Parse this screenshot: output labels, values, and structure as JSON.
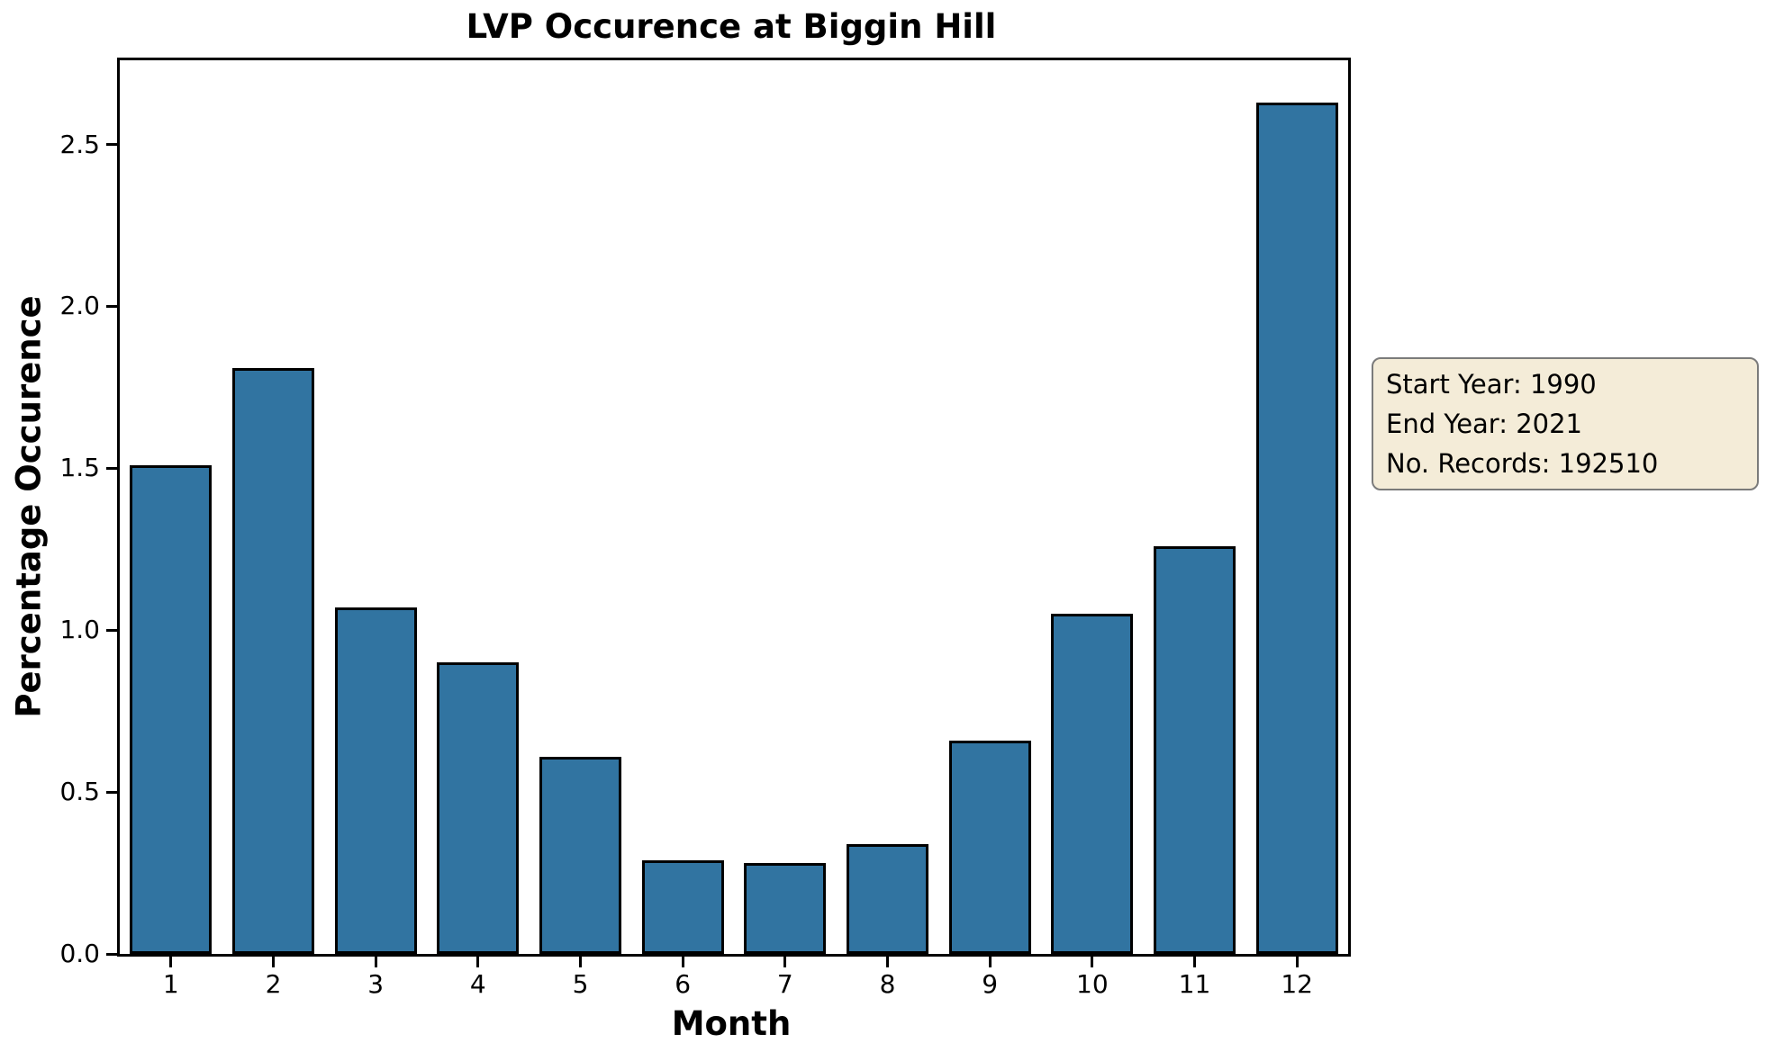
{
  "chart_data": {
    "type": "bar",
    "title": "LVP Occurence at Biggin Hill",
    "xlabel": "Month",
    "ylabel": "Percentage Occurence",
    "categories": [
      "1",
      "2",
      "3",
      "4",
      "5",
      "6",
      "7",
      "8",
      "9",
      "10",
      "11",
      "12"
    ],
    "values": [
      1.51,
      1.81,
      1.07,
      0.9,
      0.61,
      0.29,
      0.28,
      0.34,
      0.66,
      1.05,
      1.26,
      2.63
    ],
    "ylim": [
      0,
      2.76
    ],
    "yticks": [
      0.0,
      0.5,
      1.0,
      1.5,
      2.0,
      2.5
    ],
    "grid": false,
    "legend_position": "none",
    "bar_color": "#3174a1",
    "bar_edge_color": "#000000",
    "bar_width_fraction": 0.8
  },
  "annotation": {
    "lines": [
      "Start Year: 1990",
      "End Year: 2021",
      "No. Records: 192510"
    ],
    "background_color": "#f4ecd8",
    "border_color": "#7b7b7b"
  }
}
